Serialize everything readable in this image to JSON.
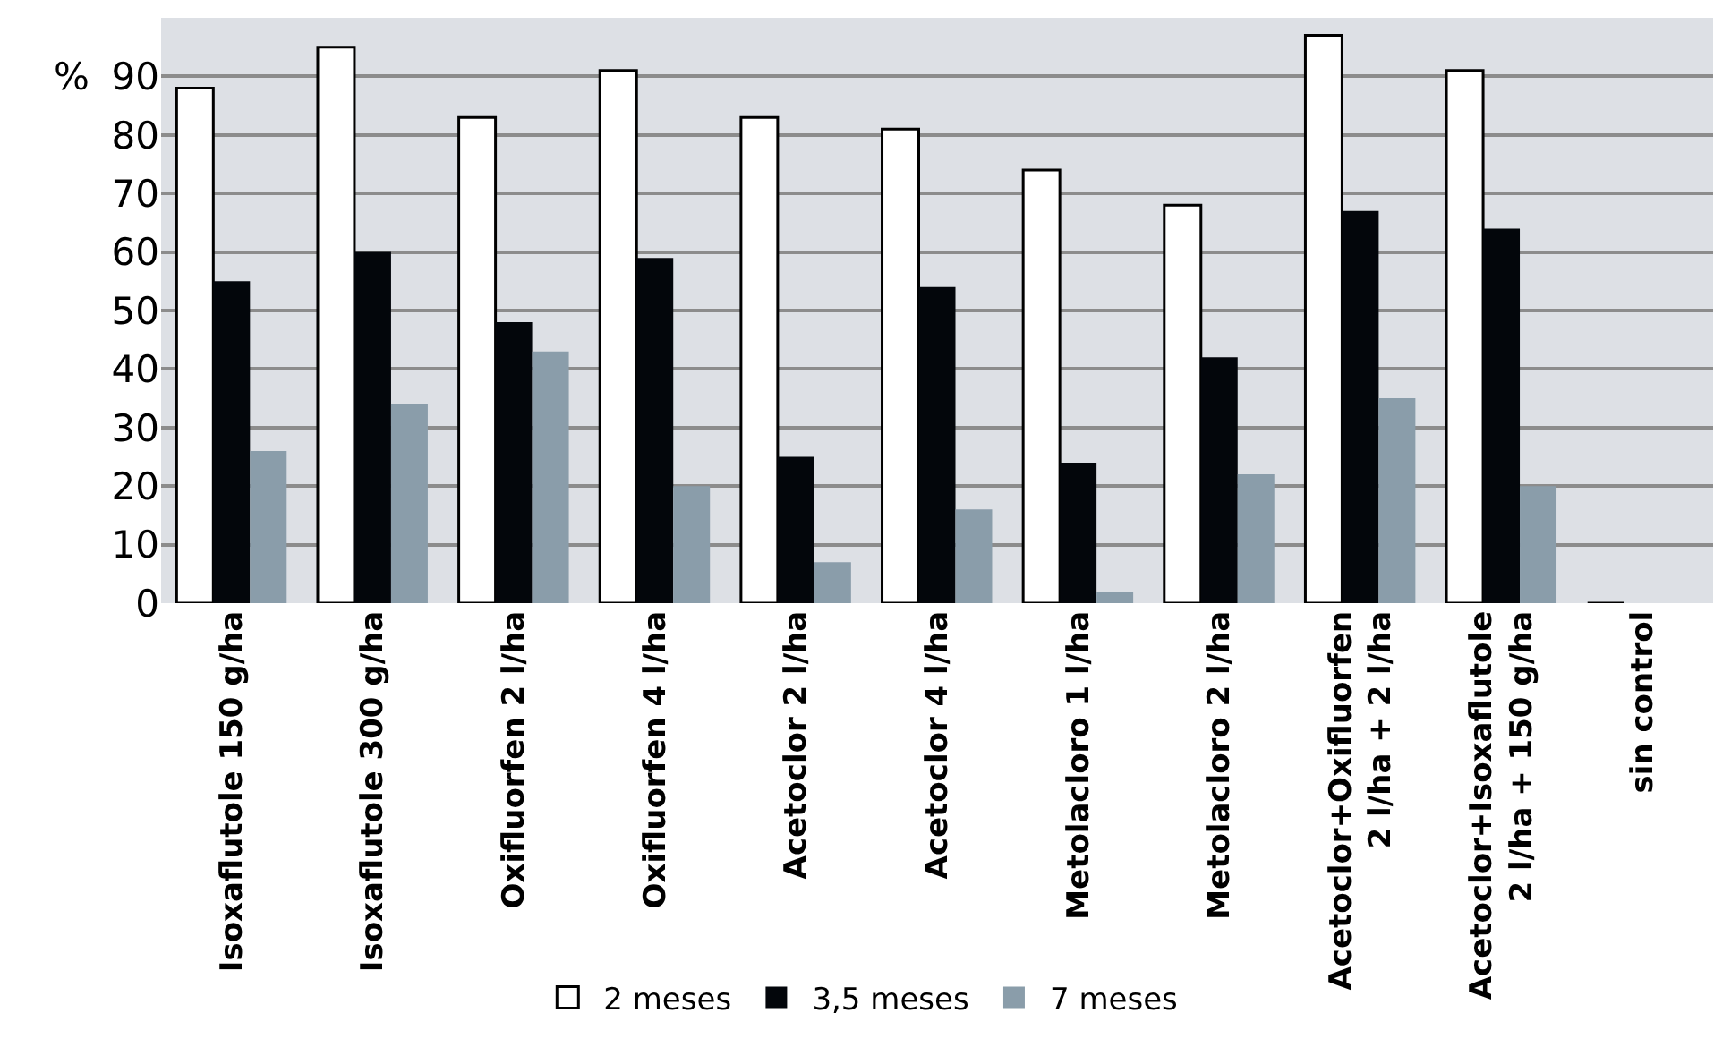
{
  "chart_data": {
    "type": "bar",
    "ylabel": "%",
    "categories": [
      "Isoxaflutole 150 g/ha",
      "Isoxaflutole 300 g/ha",
      "Oxifluorfen 2 l/ha",
      "Oxifluorfen 4 l/ha",
      "Acetoclor 2 l/ha",
      "Acetoclor 4 l/ha",
      "Metolacloro 1 l/ha",
      "Metolacloro 2 l/ha",
      "Acetoclor+Oxifluorfen\n2 l/ha + 2 l/ha",
      "Acetoclor+Isoxaflutole\n2 l/ha + 150 g/ha",
      "sin control"
    ],
    "series": [
      {
        "name": "2 meses",
        "color": "#ffffff",
        "values": [
          88,
          95,
          83,
          91,
          83,
          81,
          74,
          68,
          97,
          91,
          0
        ]
      },
      {
        "name": "3,5 meses",
        "color": "#03060b",
        "values": [
          55,
          60,
          48,
          59,
          25,
          54,
          24,
          42,
          67,
          64,
          0
        ]
      },
      {
        "name": "7 meses",
        "color": "#8a9daa",
        "values": [
          26,
          34,
          43,
          20,
          7,
          16,
          2,
          22,
          35,
          20,
          0
        ]
      }
    ],
    "ylim": [
      0,
      100
    ],
    "yticks": [
      0,
      10,
      20,
      30,
      40,
      50,
      60,
      70,
      80,
      90,
      {
        "value": 100,
        "label": null
      }
    ],
    "grid": "y",
    "legend": "bottom"
  }
}
